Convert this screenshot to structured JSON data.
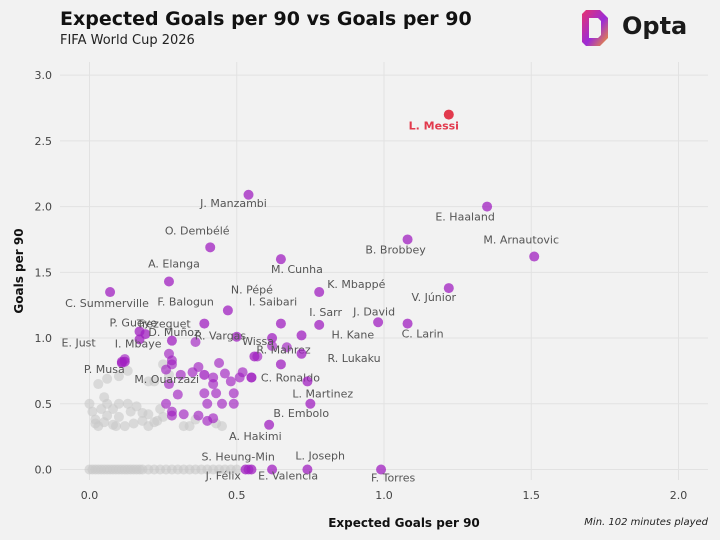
{
  "header": {
    "title": "Expected Goals per 90 vs Goals per 90",
    "subtitle": "FIFA World Cup 2026",
    "brand": "Opta"
  },
  "note": "Min. 102 minutes played",
  "colors": {
    "background": "#f2f2f2",
    "player": "#a020c0",
    "highlight": "#e23a4d",
    "other": "#c8c8c8",
    "grid": "#e2e2e2"
  },
  "chart_data": {
    "type": "scatter",
    "title": "Expected Goals per 90 vs Goals per 90",
    "xlabel": "Expected Goals per 90",
    "ylabel": "Goals per 90",
    "xlim": [
      -0.1,
      2.1
    ],
    "ylim": [
      -0.08,
      3.1
    ],
    "xticks": [
      0.0,
      0.5,
      1.0,
      1.5,
      2.0
    ],
    "xtick_labels": [
      "0.0",
      "0.5",
      "1.0",
      "1.5",
      "2.0"
    ],
    "yticks": [
      0.0,
      0.5,
      1.0,
      1.5,
      2.0,
      2.5,
      3.0
    ],
    "ytick_labels": [
      "0.0",
      "0.5",
      "1.0",
      "1.5",
      "2.0",
      "2.5",
      "3.0"
    ],
    "grid": true,
    "highlight": {
      "name": "L. Messi",
      "x": 1.22,
      "y": 2.7
    },
    "labeled": [
      {
        "name": "J. Manzambi",
        "x": 0.54,
        "y": 2.09
      },
      {
        "name": "E. Haaland",
        "x": 1.35,
        "y": 2.0
      },
      {
        "name": "O. Dembélé",
        "x": 0.41,
        "y": 1.69
      },
      {
        "name": "B. Brobbey",
        "x": 1.08,
        "y": 1.75
      },
      {
        "name": "M. Arnautovic",
        "x": 1.51,
        "y": 1.62
      },
      {
        "name": "M. Cunha",
        "x": 0.65,
        "y": 1.6
      },
      {
        "name": "A. Elanga",
        "x": 0.27,
        "y": 1.43
      },
      {
        "name": "K. Mbappé",
        "x": 0.78,
        "y": 1.35
      },
      {
        "name": "V. Júnior",
        "x": 1.22,
        "y": 1.38
      },
      {
        "name": "C. Summerville",
        "x": 0.07,
        "y": 1.35
      },
      {
        "name": "F. Balogun",
        "x": 0.39,
        "y": 1.11
      },
      {
        "name": "N. Pépé",
        "x": 0.47,
        "y": 1.21
      },
      {
        "name": "I. Saibari",
        "x": 0.65,
        "y": 1.11
      },
      {
        "name": "I. Sarr",
        "x": 0.78,
        "y": 1.1
      },
      {
        "name": "J. David",
        "x": 0.98,
        "y": 1.12
      },
      {
        "name": "C. Larin",
        "x": 1.08,
        "y": 1.11
      },
      {
        "name": "P. Gueye",
        "x": 0.17,
        "y": 1.05
      },
      {
        "name": "D. Muñoz",
        "x": 0.19,
        "y": 1.03
      },
      {
        "name": "R. Vargas",
        "x": 0.5,
        "y": 1.01
      },
      {
        "name": "Wissa",
        "x": 0.62,
        "y": 1.0
      },
      {
        "name": "H. Kane",
        "x": 0.72,
        "y": 1.02
      },
      {
        "name": "E. Just",
        "x": 0.17,
        "y": 0.99
      },
      {
        "name": "I. Mbaye",
        "x": 0.12,
        "y": 0.82
      },
      {
        "name": "Trezeguet",
        "x": 0.28,
        "y": 0.98
      },
      {
        "name": "R. Mahrez",
        "x": 0.56,
        "y": 0.86
      },
      {
        "name": "R. Lukaku",
        "x": 0.72,
        "y": 0.88
      },
      {
        "name": "P. Musa",
        "x": 0.11,
        "y": 0.81
      },
      {
        "name": "M. Ouarzazi",
        "x": 0.39,
        "y": 0.72
      },
      {
        "name": "C. Ronaldo",
        "x": 0.65,
        "y": 0.8
      },
      {
        "name": "L. Martinez",
        "x": 0.74,
        "y": 0.67
      },
      {
        "name": "B. Embolo",
        "x": 0.75,
        "y": 0.5
      },
      {
        "name": "A. Hakimi",
        "x": 0.61,
        "y": 0.34
      },
      {
        "name": "L. Joseph",
        "x": 0.74,
        "y": 0.0
      },
      {
        "name": "S. Heung-Min",
        "x": 0.55,
        "y": 0.0
      },
      {
        "name": "J. Félix",
        "x": 0.53,
        "y": 0.0
      },
      {
        "name": "E. Valencia",
        "x": 0.62,
        "y": 0.0
      },
      {
        "name": "F. Torres",
        "x": 0.99,
        "y": 0.0
      }
    ],
    "purple_unlabeled": [
      [
        0.27,
        0.88
      ],
      [
        0.28,
        0.8
      ],
      [
        0.26,
        0.76
      ],
      [
        0.31,
        0.72
      ],
      [
        0.27,
        0.65
      ],
      [
        0.35,
        0.74
      ],
      [
        0.42,
        0.7
      ],
      [
        0.42,
        0.65
      ],
      [
        0.46,
        0.73
      ],
      [
        0.48,
        0.67
      ],
      [
        0.51,
        0.7
      ],
      [
        0.52,
        0.74
      ],
      [
        0.55,
        0.7
      ],
      [
        0.3,
        0.57
      ],
      [
        0.26,
        0.5
      ],
      [
        0.28,
        0.44
      ],
      [
        0.28,
        0.41
      ],
      [
        0.32,
        0.42
      ],
      [
        0.37,
        0.41
      ],
      [
        0.4,
        0.37
      ],
      [
        0.42,
        0.39
      ],
      [
        0.4,
        0.5
      ],
      [
        0.45,
        0.5
      ],
      [
        0.49,
        0.5
      ],
      [
        0.43,
        0.58
      ],
      [
        0.49,
        0.58
      ],
      [
        0.39,
        0.58
      ],
      [
        0.12,
        0.84
      ],
      [
        0.28,
        0.83
      ],
      [
        0.54,
        0.0
      ],
      [
        0.55,
        0.7
      ],
      [
        0.57,
        0.86
      ],
      [
        0.62,
        0.94
      ],
      [
        0.37,
        0.78
      ],
      [
        0.67,
        0.93
      ],
      [
        0.11,
        0.82
      ],
      [
        0.44,
        0.81
      ],
      [
        0.36,
        0.97
      ]
    ],
    "gray": [
      [
        0.0,
        0.5
      ],
      [
        0.01,
        0.44
      ],
      [
        0.02,
        0.38
      ],
      [
        0.03,
        0.33
      ],
      [
        0.05,
        0.36
      ],
      [
        0.04,
        0.46
      ],
      [
        0.06,
        0.41
      ],
      [
        0.08,
        0.46
      ],
      [
        0.08,
        0.34
      ],
      [
        0.1,
        0.4
      ],
      [
        0.12,
        0.33
      ],
      [
        0.14,
        0.44
      ],
      [
        0.15,
        0.35
      ],
      [
        0.16,
        0.48
      ],
      [
        0.18,
        0.37
      ],
      [
        0.2,
        0.42
      ],
      [
        0.2,
        0.33
      ],
      [
        0.22,
        0.36
      ],
      [
        0.24,
        0.46
      ],
      [
        0.25,
        0.4
      ],
      [
        0.1,
        0.5
      ],
      [
        0.13,
        0.5
      ],
      [
        0.06,
        0.5
      ],
      [
        0.09,
        0.33
      ],
      [
        0.03,
        0.65
      ],
      [
        0.06,
        0.69
      ],
      [
        0.1,
        0.71
      ],
      [
        0.13,
        0.75
      ],
      [
        0.2,
        0.67
      ],
      [
        0.22,
        0.67
      ],
      [
        0.25,
        0.8
      ],
      [
        0.27,
        0.72
      ],
      [
        0.32,
        0.33
      ],
      [
        0.34,
        0.33
      ],
      [
        0.43,
        0.35
      ],
      [
        0.45,
        0.33
      ],
      [
        0.02,
        0.35
      ],
      [
        0.05,
        0.55
      ],
      [
        0.18,
        0.43
      ],
      [
        0.23,
        0.37
      ],
      [
        0.36,
        0.38
      ],
      [
        0.0,
        0.0
      ],
      [
        0.02,
        0.0
      ],
      [
        0.04,
        0.0
      ],
      [
        0.06,
        0.0
      ],
      [
        0.08,
        0.0
      ],
      [
        0.1,
        0.0
      ],
      [
        0.12,
        0.0
      ],
      [
        0.14,
        0.0
      ],
      [
        0.16,
        0.0
      ],
      [
        0.18,
        0.0
      ],
      [
        0.2,
        0.0
      ],
      [
        0.22,
        0.0
      ],
      [
        0.24,
        0.0
      ],
      [
        0.26,
        0.0
      ],
      [
        0.28,
        0.0
      ],
      [
        0.3,
        0.0
      ],
      [
        0.32,
        0.0
      ],
      [
        0.34,
        0.0
      ],
      [
        0.36,
        0.0
      ],
      [
        0.38,
        0.0
      ],
      [
        0.4,
        0.0
      ],
      [
        0.42,
        0.0
      ],
      [
        0.44,
        0.0
      ],
      [
        0.46,
        0.0
      ],
      [
        0.48,
        0.0
      ],
      [
        0.5,
        0.0
      ],
      [
        0.01,
        0.0
      ],
      [
        0.03,
        0.0
      ],
      [
        0.05,
        0.0
      ],
      [
        0.07,
        0.0
      ],
      [
        0.09,
        0.0
      ],
      [
        0.11,
        0.0
      ],
      [
        0.13,
        0.0
      ],
      [
        0.15,
        0.0
      ],
      [
        0.17,
        0.0
      ]
    ]
  }
}
